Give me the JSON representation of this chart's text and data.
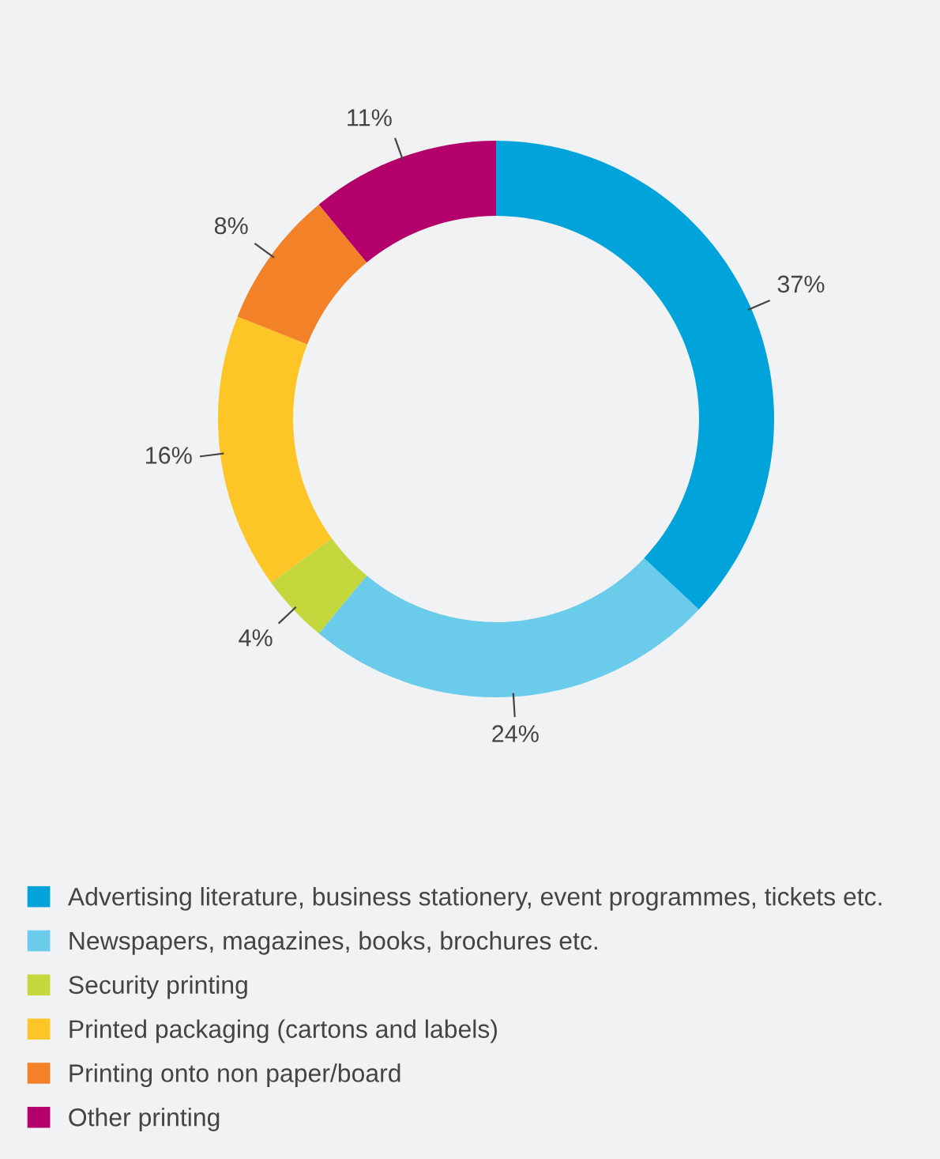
{
  "chart_data": {
    "type": "donut",
    "categories": [
      "Advertising literature, business stationery, event programmes, tickets etc.",
      "Newspapers, magazines, books, brochures etc.",
      "Security printing",
      "Printed packaging (cartons and labels)",
      "Printing onto non paper/board",
      "Other printing"
    ],
    "values": [
      37,
      24,
      4,
      16,
      8,
      11
    ],
    "colors": [
      "#00a3da",
      "#6bcbeb",
      "#c4d73c",
      "#fec526",
      "#f28127",
      "#b4006b"
    ],
    "value_labels": [
      "37%",
      "24%",
      "4%",
      "16%",
      "8%",
      "11%"
    ],
    "legend": "bottom"
  }
}
